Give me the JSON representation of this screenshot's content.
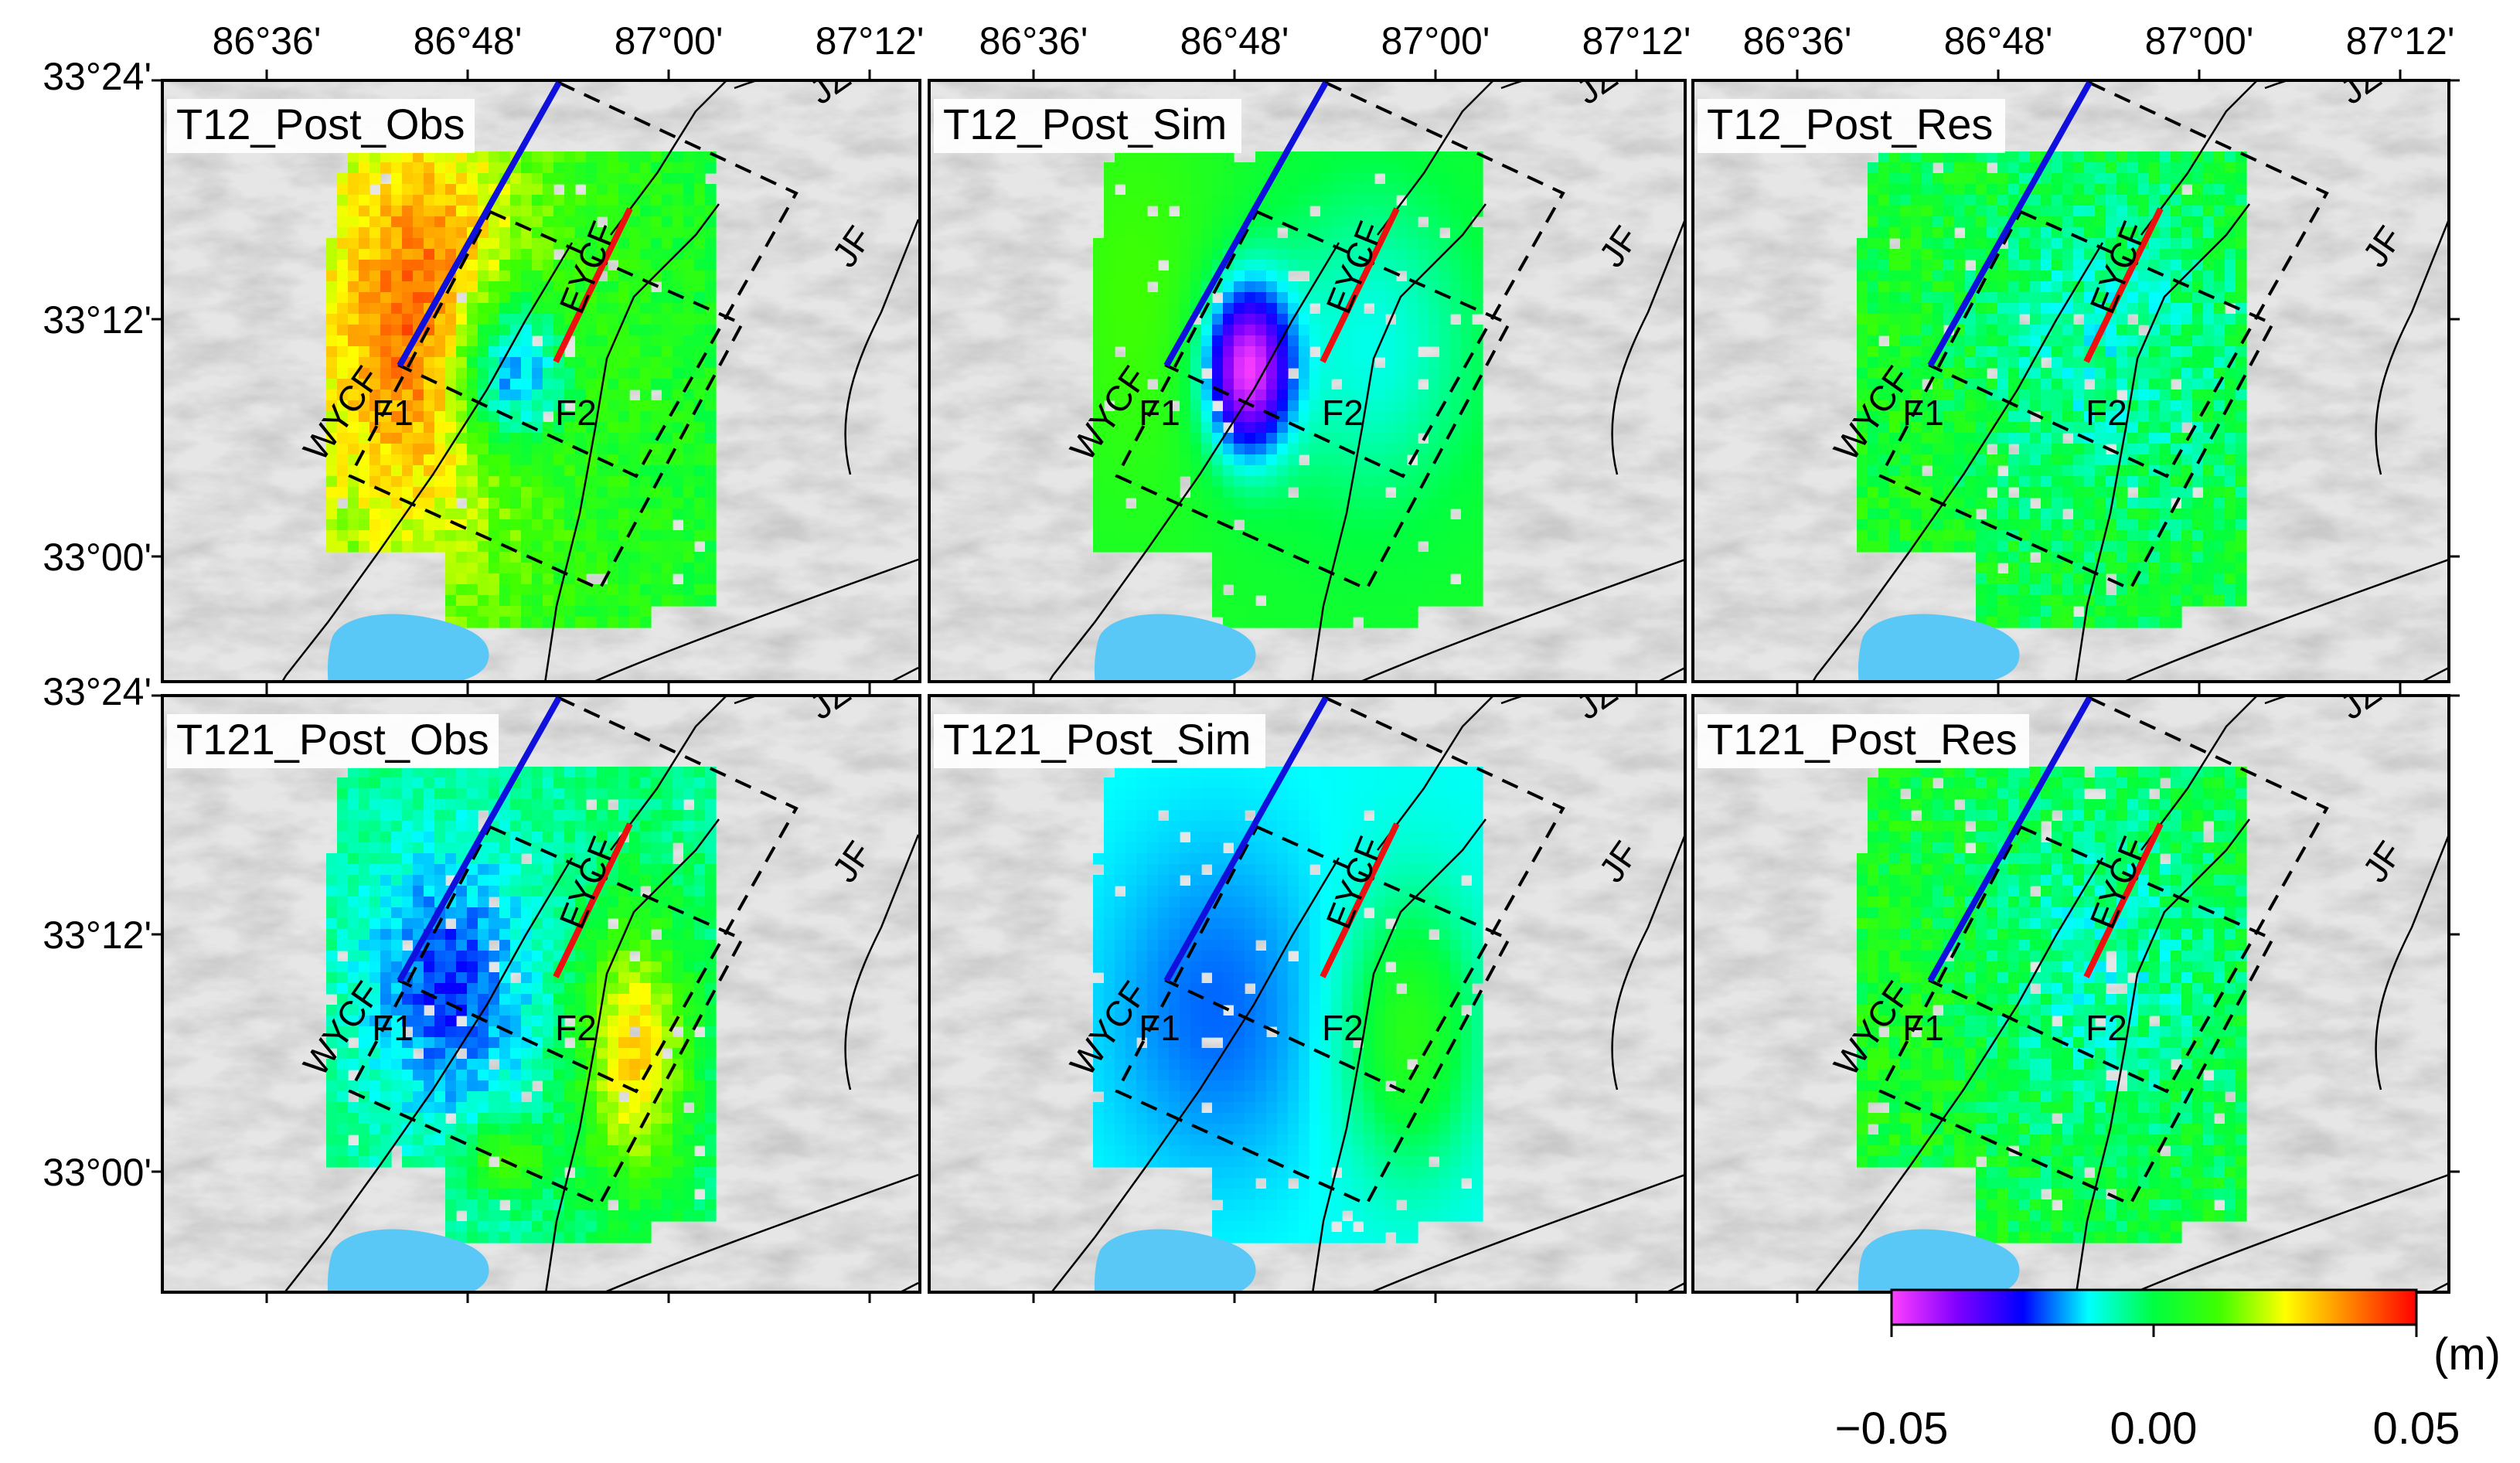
{
  "figure": {
    "x_ticks": [
      "86°36'",
      "86°48'",
      "87°00'",
      "87°12'"
    ],
    "y_ticks": [
      "33°24'",
      "33°12'",
      "33°00'"
    ],
    "panels": [
      {
        "title": "T12_Post_Obs",
        "pattern": "t12_obs"
      },
      {
        "title": "T12_Post_Sim",
        "pattern": "t12_sim"
      },
      {
        "title": "T12_Post_Res",
        "pattern": "res"
      },
      {
        "title": "T121_Post_Obs",
        "pattern": "t121_obs"
      },
      {
        "title": "T121_Post_Sim",
        "pattern": "t121_sim"
      },
      {
        "title": "T121_Post_Res",
        "pattern": "res"
      }
    ],
    "fault_labels": {
      "jzf": "JZF",
      "jf": "JF",
      "wycf": "WYCF",
      "eycf": "EYCF",
      "f1": "F1",
      "f2": "F2"
    },
    "colorbar": {
      "unit": "(m)",
      "ticks": [
        "−0.05",
        "0.00",
        "0.05"
      ],
      "min": -0.05,
      "max": 0.05,
      "colors": [
        "#ff40ff",
        "#8000ff",
        "#0000ff",
        "#00ffff",
        "#00ff40",
        "#40ff00",
        "#ffff00",
        "#ff8000",
        "#ff0000"
      ]
    },
    "colors": {
      "fault_f1": "#1010dd",
      "fault_f2": "#ee1010",
      "lake": "#5ac8f7",
      "fault_trace": "#000000"
    }
  }
}
